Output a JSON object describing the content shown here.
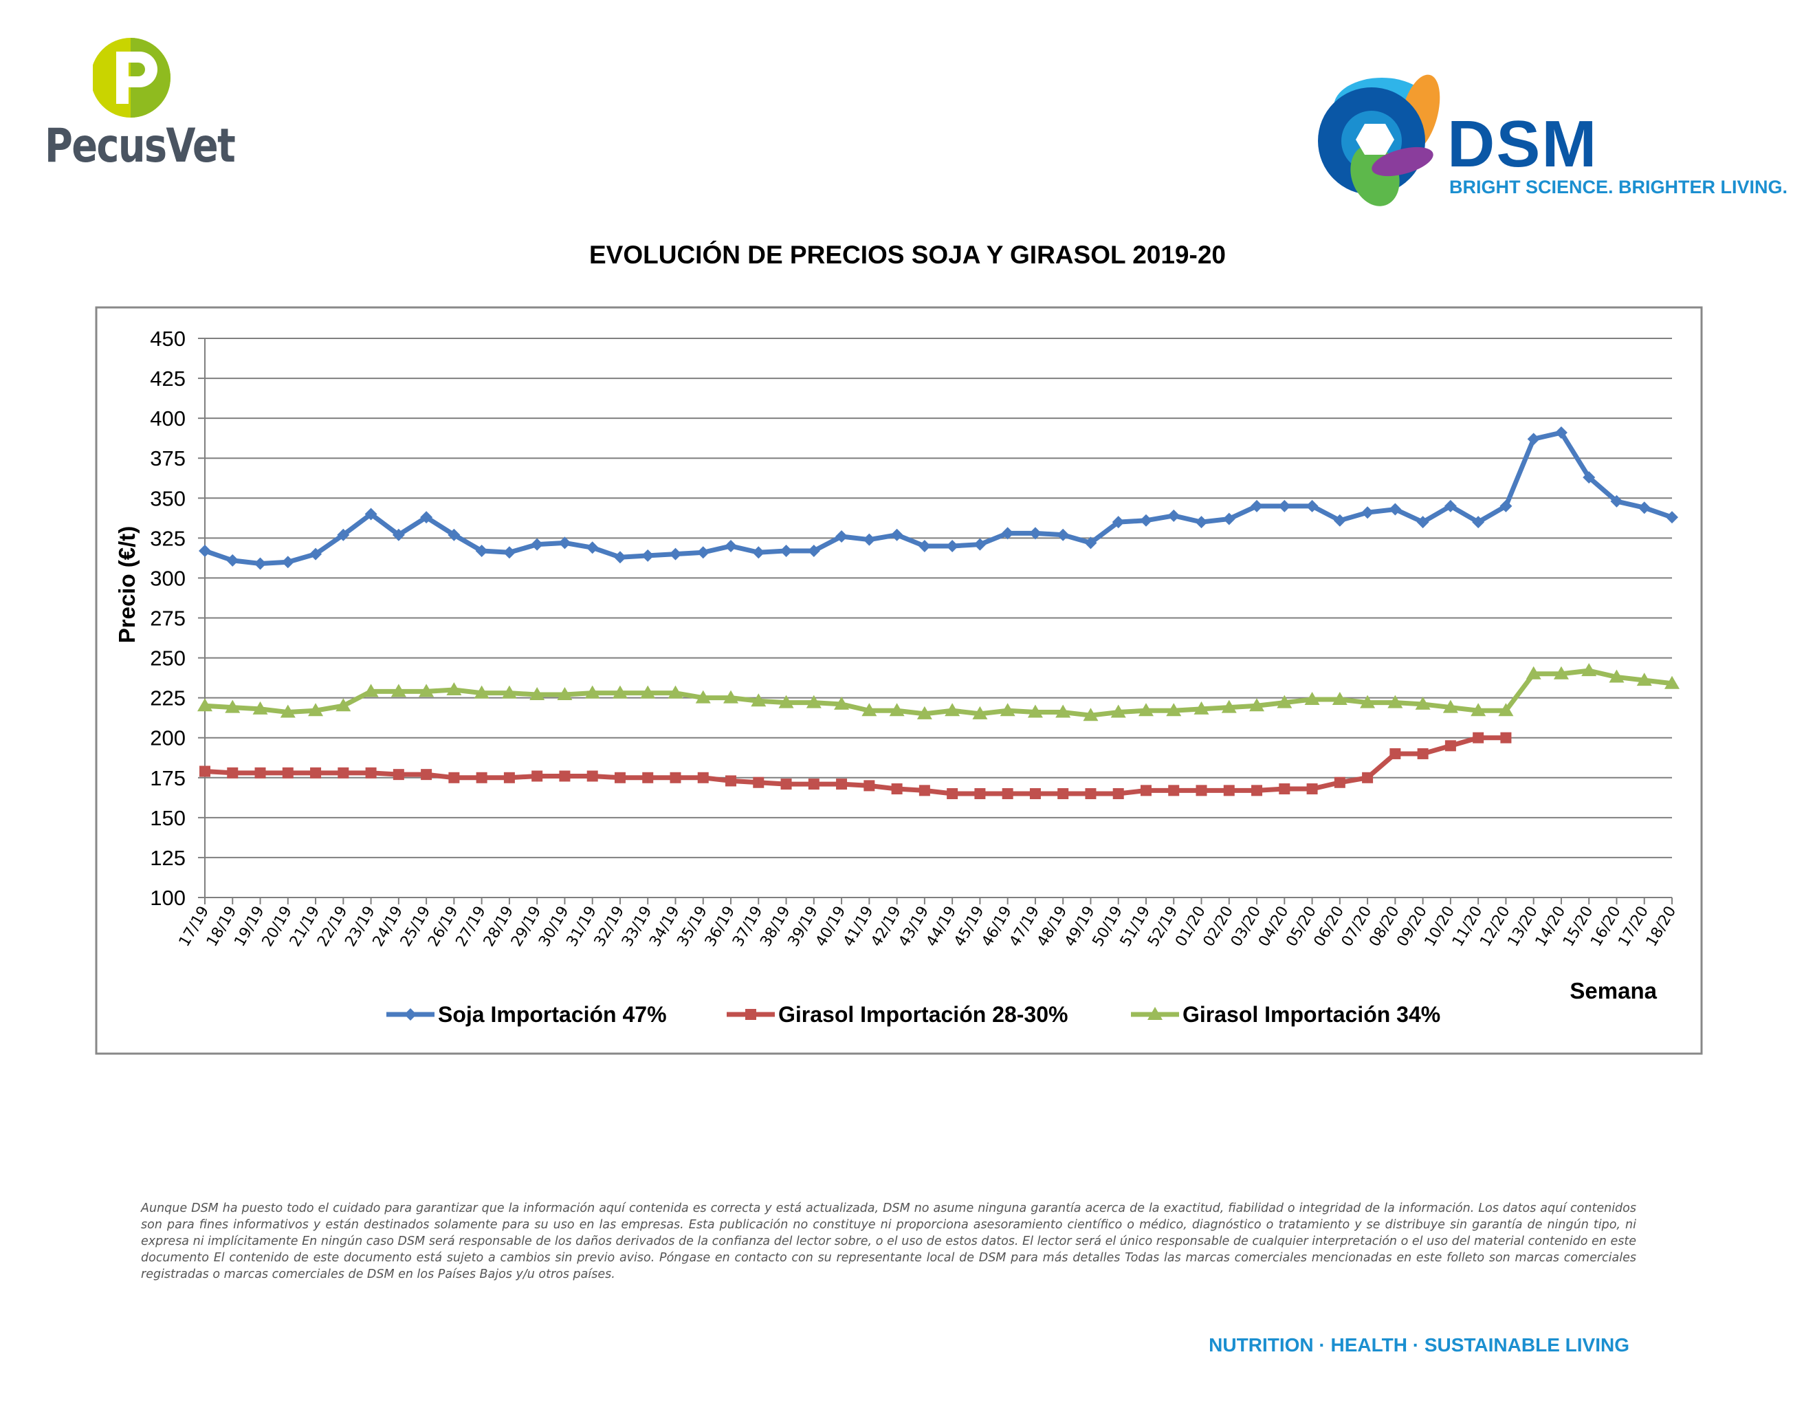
{
  "logos": {
    "pecusvet": "PecusVet",
    "dsm_word": "DSM",
    "dsm_tagline": "BRIGHT SCIENCE. BRIGHTER LIVING."
  },
  "footer": {
    "disclaimer": "Aunque DSM ha puesto todo el cuidado para garantizar que la información aquí contenida es correcta y está actualizada, DSM no asume ninguna garantía acerca de la exactitud, fiabilidad o integridad de la información. Los datos aquí contenidos son para fines informativos y están destinados solamente para su uso en las empresas. Esta publicación no constituye ni proporciona asesoramiento científico o médico, diagnóstico o tratamiento y se distribuye sin garantía de ningún tipo, ni expresa ni implícitamente En ningún caso DSM será responsable de los daños derivados de la confianza del lector sobre, o el uso de estos datos. El lector será el único responsable de cualquier interpretación o el uso del material contenido en este documento El contenido de este documento está sujeto a cambios sin previo aviso. Póngase en contacto con su representante local de DSM para más detalles Todas las marcas comerciales mencionadas en este folleto son marcas comerciales registradas o marcas comerciales de DSM en los Países Bajos y/u otros países.",
    "tagline": "NUTRITION · HEALTH · SUSTAINABLE LIVING"
  },
  "chart_data": {
    "type": "line",
    "title": "EVOLUCIÓN DE PRECIOS SOJA Y GIRASOL 2019-20",
    "xlabel": "Semana",
    "ylabel": "Precio (€/t)",
    "ylim": [
      100,
      450
    ],
    "yticks": [
      100,
      125,
      150,
      175,
      200,
      225,
      250,
      275,
      300,
      325,
      350,
      375,
      400,
      425,
      450
    ],
    "grid": "horizontal",
    "legend_position": "bottom",
    "categories": [
      "17/19",
      "18/19",
      "19/19",
      "20/19",
      "21/19",
      "22/19",
      "23/19",
      "24/19",
      "25/19",
      "26/19",
      "27/19",
      "28/19",
      "29/19",
      "30/19",
      "31/19",
      "32/19",
      "33/19",
      "34/19",
      "35/19",
      "36/19",
      "37/19",
      "38/19",
      "39/19",
      "40/19",
      "41/19",
      "42/19",
      "43/19",
      "44/19",
      "45/19",
      "46/19",
      "47/19",
      "48/19",
      "49/19",
      "50/19",
      "51/19",
      "52/19",
      "01/20",
      "02/20",
      "03/20",
      "04/20",
      "05/20",
      "06/20",
      "07/20",
      "08/20",
      "09/20",
      "10/20",
      "11/20",
      "12/20",
      "13/20",
      "14/20",
      "15/20",
      "16/20",
      "17/20",
      "18/20"
    ],
    "series": [
      {
        "name": "Soja Importación 47%",
        "color": "#4a7bbf",
        "marker": "diamond",
        "values": [
          317,
          311,
          309,
          310,
          315,
          327,
          340,
          327,
          338,
          327,
          317,
          316,
          321,
          322,
          319,
          313,
          314,
          315,
          316,
          320,
          316,
          317,
          317,
          326,
          324,
          327,
          320,
          320,
          321,
          328,
          328,
          327,
          322,
          335,
          336,
          339,
          335,
          337,
          345,
          345,
          345,
          336,
          341,
          343,
          335,
          345,
          335,
          345,
          387,
          391,
          363,
          348,
          344,
          338
        ]
      },
      {
        "name": "Girasol Importación 28-30%",
        "color": "#c0504d",
        "marker": "square",
        "values": [
          179,
          178,
          178,
          178,
          178,
          178,
          178,
          177,
          177,
          175,
          175,
          175,
          176,
          176,
          176,
          175,
          175,
          175,
          175,
          173,
          172,
          171,
          171,
          171,
          170,
          168,
          167,
          165,
          165,
          165,
          165,
          165,
          165,
          165,
          167,
          167,
          167,
          167,
          167,
          168,
          168,
          172,
          175,
          190,
          190,
          195,
          200,
          200,
          null,
          null,
          null,
          null,
          null,
          null
        ]
      },
      {
        "name": "Girasol Importación 34%",
        "color": "#9bbb59",
        "marker": "triangle",
        "values": [
          220,
          219,
          218,
          216,
          217,
          220,
          229,
          229,
          229,
          230,
          228,
          228,
          227,
          227,
          228,
          228,
          228,
          228,
          225,
          225,
          223,
          222,
          222,
          221,
          217,
          217,
          215,
          217,
          215,
          217,
          216,
          216,
          214,
          216,
          217,
          217,
          218,
          219,
          220,
          222,
          224,
          224,
          222,
          222,
          221,
          219,
          217,
          217,
          240,
          240,
          242,
          238,
          236,
          234
        ]
      }
    ]
  }
}
